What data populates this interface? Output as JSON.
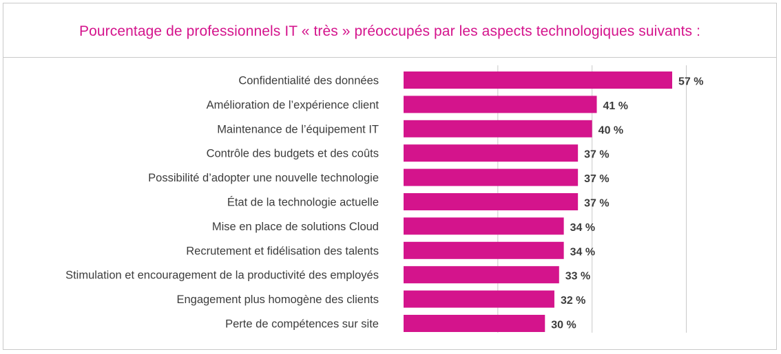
{
  "chart_data": {
    "type": "bar",
    "orientation": "horizontal",
    "title": "Pourcentage de professionnels IT « très » préoccupés par les aspects technologiques suivants :",
    "categories": [
      "Confidentialité des données",
      "Amélioration de l’expérience client",
      "Maintenance de l’équipement IT",
      "Contrôle des budgets et des coûts",
      "Possibilité d’adopter une nouvelle technologie",
      "État de la technologie actuelle",
      "Mise en place de solutions Cloud",
      "Recrutement et fidélisation des talents",
      "Stimulation et encouragement de la productivité des employés",
      "Engagement plus homogène des clients",
      "Perte de compétences sur site"
    ],
    "values": [
      57,
      41,
      40,
      37,
      37,
      37,
      34,
      34,
      33,
      32,
      30
    ],
    "value_labels": [
      "57 %",
      "41 %",
      "40 %",
      "37 %",
      "37 %",
      "37 %",
      "34 %",
      "34 %",
      "33 %",
      "32 %",
      "30 %"
    ],
    "xlim": [
      0,
      60
    ],
    "gridlines": [
      20,
      40,
      60
    ],
    "grid": true,
    "legend": "none",
    "bar_color": "#d4148c",
    "grid_color": "#c8c8c8"
  }
}
